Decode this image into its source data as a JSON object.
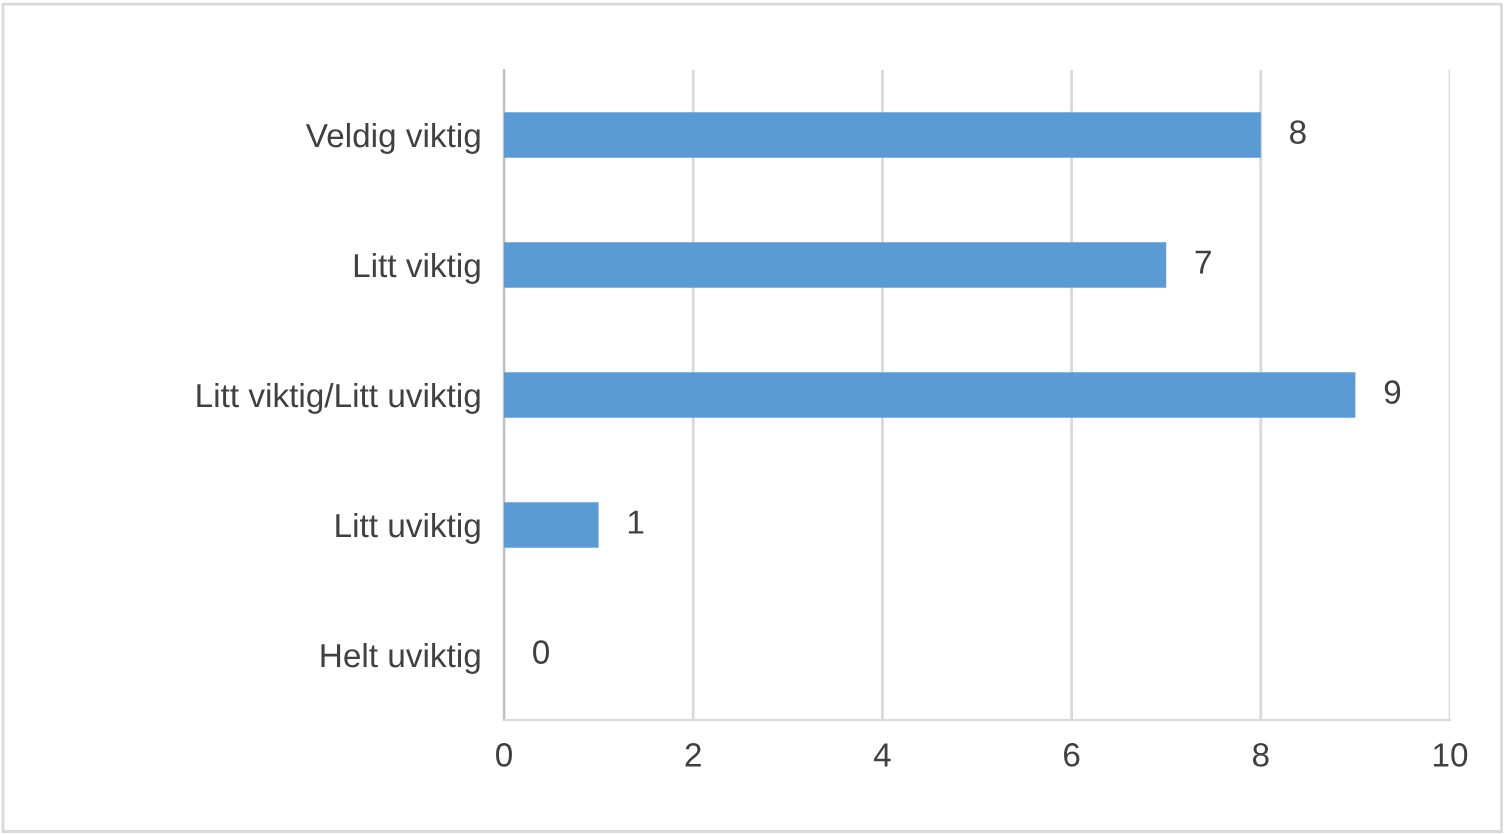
{
  "chart_data": {
    "type": "bar",
    "orientation": "horizontal",
    "categories": [
      "Veldig viktig",
      "Litt viktig",
      "Litt viktig/Litt uviktig",
      "Litt uviktig",
      "Helt uviktig"
    ],
    "values": [
      8,
      7,
      9,
      1,
      0
    ],
    "color": "#5b9bd5",
    "xlim": [
      0,
      10
    ],
    "xticks": [
      0,
      2,
      4,
      6,
      8,
      10
    ],
    "grid": "x",
    "data_labels": true,
    "legend": false
  }
}
